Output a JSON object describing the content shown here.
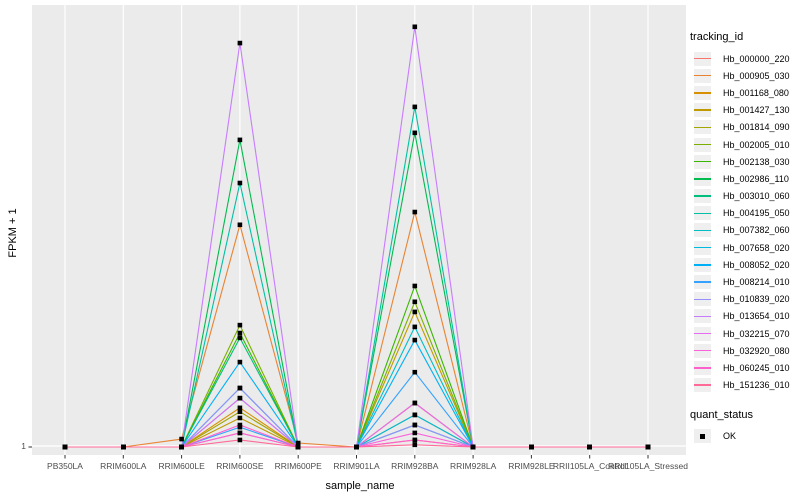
{
  "chart": {
    "y_axis": {
      "title": "FPKM + 1",
      "tick_labels": [
        "1"
      ]
    },
    "x_axis": {
      "title": "sample_name"
    },
    "legend": {
      "tracking_title": "tracking_id",
      "quant_title": "quant_status",
      "quant_entries": [
        {
          "label": "OK",
          "marker": "black-square"
        }
      ]
    },
    "colors": {
      "panel_bg": "#EBEBEB",
      "grid": "#FFFFFF",
      "axis_text": "#4D4D4D",
      "tick_mark": "#333333",
      "marker": "#000000",
      "legend_key_bg": "#EFEFEF"
    }
  },
  "chart_data": {
    "type": "line",
    "title": "",
    "xlabel": "sample_name",
    "ylabel": "FPKM + 1",
    "legend_position": "right",
    "grid": "vertical white major gridlines at each category; white baseline gridline at y tick 1",
    "y_axis_note": "Only the tick '1' is labeled (baseline). Series values below are expressed as fraction of plot height above the y=1 baseline, estimated from pixels.",
    "marker_note": "Every (sample, series) vertex carries a small black square point; quant_status legend maps the square to 'OK'.",
    "x_categories": [
      "PB350LA",
      "RRIM600LA",
      "RRIM600LE",
      "RRIM600SE",
      "RRIM600PE",
      "RRIM901LA",
      "RRIM928BA",
      "RRIM928LA",
      "RRIM928LE",
      "RRII105LA_Control",
      "RRII105LA_Stressed"
    ],
    "series": [
      {
        "name": "Hb_000000_220",
        "color": "#F8766D",
        "values": [
          0,
          0,
          0,
          0.032,
          0,
          0,
          0.016,
          0,
          0,
          0,
          0
        ]
      },
      {
        "name": "Hb_000905_030",
        "color": "#EA8331",
        "values": [
          0,
          0,
          0.018,
          0.505,
          0.009,
          0,
          0.534,
          0,
          0,
          0,
          0
        ]
      },
      {
        "name": "Hb_001168_080",
        "color": "#D89000",
        "values": [
          0,
          0,
          0,
          0.089,
          0,
          0,
          0.1,
          0,
          0,
          0,
          0
        ]
      },
      {
        "name": "Hb_001427_130",
        "color": "#C09B00",
        "values": [
          0,
          0,
          0,
          0.066,
          0,
          0,
          0.307,
          0,
          0,
          0,
          0
        ]
      },
      {
        "name": "Hb_001814_090",
        "color": "#A3A500",
        "values": [
          0,
          0,
          0,
          0.08,
          0,
          0,
          0.073,
          0,
          0,
          0,
          0
        ]
      },
      {
        "name": "Hb_002005_010",
        "color": "#7CAE00",
        "values": [
          0,
          0,
          0,
          0.277,
          0,
          0,
          0.33,
          0,
          0,
          0,
          0
        ]
      },
      {
        "name": "Hb_002138_030",
        "color": "#39B600",
        "values": [
          0,
          0,
          0,
          0.259,
          0,
          0,
          0.366,
          0,
          0,
          0,
          0
        ]
      },
      {
        "name": "Hb_002986_110",
        "color": "#00BB4E",
        "values": [
          0,
          0,
          0,
          0.698,
          0,
          0,
          0.714,
          0,
          0,
          0,
          0
        ]
      },
      {
        "name": "Hb_003010_060",
        "color": "#00BF7D",
        "values": [
          0,
          0,
          0,
          0.248,
          0,
          0,
          0.05,
          0,
          0,
          0,
          0
        ]
      },
      {
        "name": "Hb_004195_050",
        "color": "#00C1A3",
        "values": [
          0,
          0,
          0,
          0.6,
          0,
          0,
          0.773,
          0,
          0,
          0,
          0
        ]
      },
      {
        "name": "Hb_007382_060",
        "color": "#00BFC4",
        "values": [
          0,
          0,
          0,
          0.134,
          0,
          0,
          0.273,
          0,
          0,
          0,
          0
        ]
      },
      {
        "name": "Hb_007658_020",
        "color": "#00BAE0",
        "values": [
          0,
          0,
          0,
          0.111,
          0,
          0,
          0.073,
          0,
          0,
          0,
          0
        ]
      },
      {
        "name": "Hb_008052_020",
        "color": "#00B0F6",
        "values": [
          0,
          0,
          0,
          0.193,
          0,
          0,
          0.243,
          0,
          0,
          0,
          0
        ]
      },
      {
        "name": "Hb_008214_010",
        "color": "#35A2FF",
        "values": [
          0,
          0,
          0,
          0.045,
          0,
          0,
          0.17,
          0,
          0,
          0,
          0
        ]
      },
      {
        "name": "Hb_010839_020",
        "color": "#9590FF",
        "values": [
          0,
          0,
          0,
          0.134,
          0,
          0,
          0.05,
          0,
          0,
          0,
          0
        ]
      },
      {
        "name": "Hb_013654_010",
        "color": "#C77CFF",
        "values": [
          0,
          0,
          0,
          0.918,
          0,
          0,
          0.955,
          0,
          0,
          0,
          0
        ]
      },
      {
        "name": "Hb_032215_070",
        "color": "#E76BF3",
        "values": [
          0,
          0,
          0,
          0.111,
          0,
          0,
          0.1,
          0,
          0,
          0,
          0
        ]
      },
      {
        "name": "Hb_032920_080",
        "color": "#FA62DB",
        "values": [
          0,
          0,
          0,
          0.032,
          0,
          0,
          0.032,
          0,
          0,
          0,
          0
        ]
      },
      {
        "name": "Hb_060245_010",
        "color": "#FF61CC",
        "values": [
          0,
          0,
          0,
          0.05,
          0,
          0,
          0.016,
          0,
          0,
          0,
          0
        ]
      },
      {
        "name": "Hb_151236_010",
        "color": "#FF6A98",
        "values": [
          0,
          0,
          0,
          0.016,
          0,
          0,
          0.005,
          0,
          0,
          0,
          0
        ]
      }
    ]
  }
}
